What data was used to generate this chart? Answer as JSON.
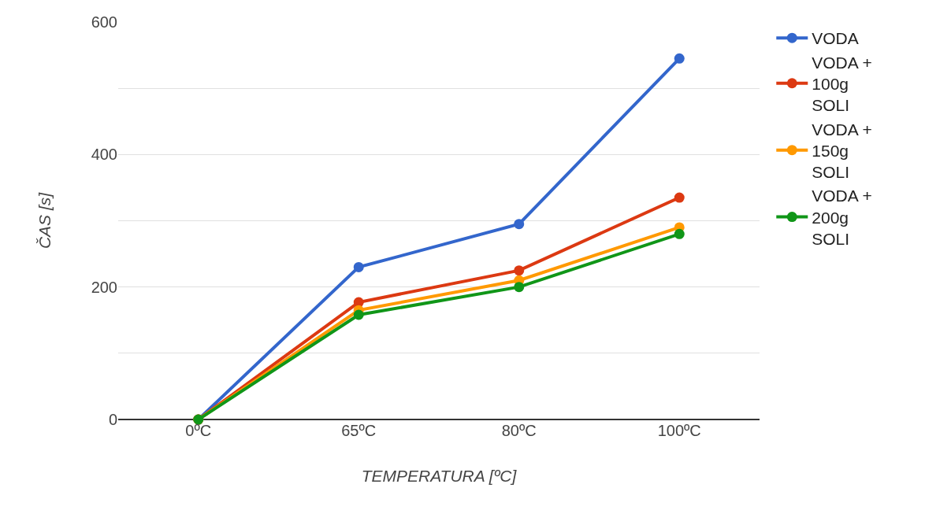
{
  "chart_data": {
    "type": "line",
    "xlabel": "TEMPERATURA [ºC]",
    "ylabel": "ČAS [s]",
    "categories": [
      "0ºC",
      "65ºC",
      "80ºC",
      "100ºC"
    ],
    "series": [
      {
        "name": "VODA",
        "color": "#3366cc",
        "values": [
          0,
          230,
          295,
          545
        ]
      },
      {
        "name": "VODA + 100g SOLI",
        "color": "#dc3912",
        "values": [
          0,
          177,
          225,
          335
        ]
      },
      {
        "name": "VODA + 150g SOLI",
        "color": "#ff9900",
        "values": [
          0,
          165,
          210,
          290
        ]
      },
      {
        "name": "VODA + 200g SOLI",
        "color": "#109618",
        "values": [
          0,
          158,
          200,
          280
        ]
      }
    ],
    "ylim": [
      0,
      600
    ],
    "yticks": [
      0,
      {
        "value": 100,
        "label": null
      },
      200,
      {
        "value": 300,
        "label": null
      },
      400,
      {
        "value": 500,
        "label": null
      },
      600
    ],
    "grid": "y",
    "legend": "right",
    "marker": "circle",
    "line_style": "solid"
  }
}
